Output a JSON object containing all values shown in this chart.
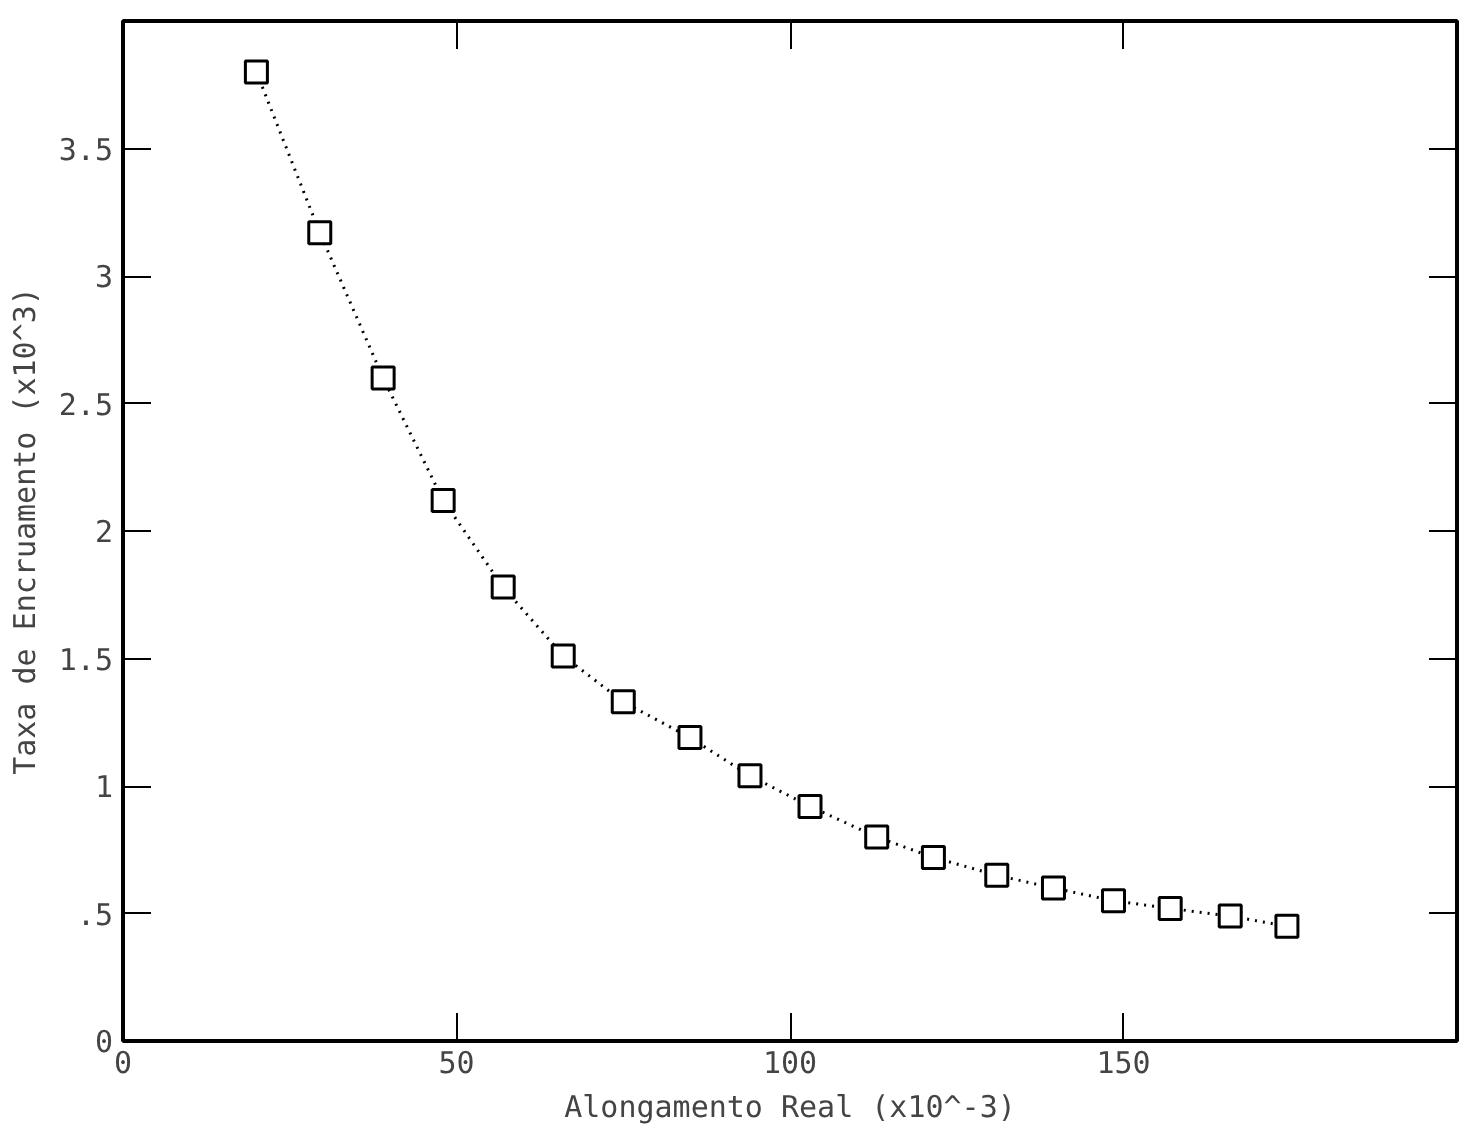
{
  "chart_data": {
    "type": "line",
    "xlabel": "Alongamento Real (x10^-3)",
    "ylabel": "Taxa de Encruamento (x10^3)",
    "x": [
      20,
      29.5,
      39,
      48,
      57,
      66,
      75,
      85,
      94,
      103,
      113,
      121.5,
      131,
      139.5,
      148.5,
      157,
      166,
      174.5
    ],
    "series": [
      {
        "color": "#000000",
        "values": [
          3.8,
          3.17,
          2.6,
          2.12,
          1.78,
          1.51,
          1.33,
          1.19,
          1.04,
          0.92,
          0.8,
          0.72,
          0.65,
          0.6,
          0.55,
          0.52,
          0.49,
          0.45
        ]
      }
    ],
    "marker": "square",
    "line_style": "dotted",
    "grid": false,
    "xlim": [
      0,
      200
    ],
    "ylim": [
      0,
      4
    ],
    "xticks": [
      0,
      50,
      100,
      150
    ],
    "yticks": [
      0,
      {
        "value": 0.5,
        "label": ".5"
      },
      1,
      1.5,
      2,
      2.5,
      3,
      3.5
    ]
  }
}
